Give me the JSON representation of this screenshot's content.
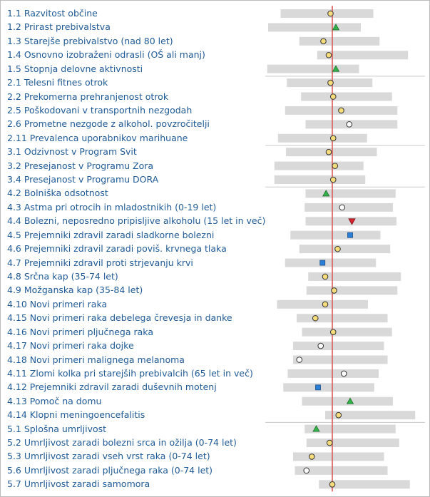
{
  "chart_data": {
    "type": "range-dot",
    "colors": {
      "label": "#1f5a96",
      "bar": "#d9d9d9",
      "reference_line": "#d9534f",
      "separator": "#c8c8c8",
      "marker_yellow": "#f7dc7b",
      "marker_white": "#ffffff",
      "marker_green": "#33b44a",
      "marker_red": "#d9232e",
      "marker_blue": "#2b7fd6"
    },
    "reference": 0,
    "groups": [
      {
        "rows": [
          {
            "label": "1.1 Razvitost občine",
            "range": [
              -0.58,
              0.46
            ],
            "value": -0.02,
            "marker": "circle",
            "color": "yellow"
          },
          {
            "label": "1.2 Prirast prebivalstva",
            "range": [
              -0.72,
              0.32
            ],
            "value": 0.04,
            "marker": "triangle-up",
            "color": "green"
          },
          {
            "label": "1.3 Starejše prebivalstvo (nad 80 let)",
            "range": [
              -0.37,
              0.53
            ],
            "value": -0.1,
            "marker": "circle",
            "color": "yellow"
          },
          {
            "label": "1.4 Osnovno izobraženi odrasli (OŠ ali manj)",
            "range": [
              -0.17,
              0.85
            ],
            "value": -0.04,
            "marker": "circle",
            "color": "yellow"
          },
          {
            "label": "1.5 Stopnja delovne aktivnosti",
            "range": [
              -0.73,
              0.3
            ],
            "value": 0.04,
            "marker": "triangle-up",
            "color": "green"
          }
        ]
      },
      {
        "rows": [
          {
            "label": "2.1 Telesni fitnes otrok",
            "range": [
              -0.51,
              0.45
            ],
            "value": -0.02,
            "marker": "circle",
            "color": "yellow"
          },
          {
            "label": "2.2 Prekomerna prehranjenost otrok",
            "range": [
              -0.35,
              0.67
            ],
            "value": 0.01,
            "marker": "circle",
            "color": "yellow"
          },
          {
            "label": "2.5 Poškodovani v transportnih nezgodah",
            "range": [
              -0.53,
              0.73
            ],
            "value": 0.1,
            "marker": "circle",
            "color": "yellow"
          },
          {
            "label": "2.6 Prometne nezgode z alkohol. povzročitelji",
            "range": [
              -0.3,
              0.73
            ],
            "value": 0.19,
            "marker": "circle",
            "color": "white"
          },
          {
            "label": "2.11 Prevalenca uporabnikov marihuane",
            "range": [
              -0.61,
              0.39
            ],
            "value": 0.01,
            "marker": "circle",
            "color": "yellow"
          }
        ]
      },
      {
        "rows": [
          {
            "label": "3.1 Odzivnost v Program Svit",
            "range": [
              -0.52,
              0.5
            ],
            "value": -0.04,
            "marker": "circle",
            "color": "yellow"
          },
          {
            "label": "3.2 Presejanost v Programu Zora",
            "range": [
              -0.65,
              0.35
            ],
            "value": 0.03,
            "marker": "circle",
            "color": "yellow"
          },
          {
            "label": "3.4 Presejanost v Programu DORA",
            "range": [
              -0.65,
              0.37
            ],
            "value": 0.01,
            "marker": "circle",
            "color": "yellow"
          }
        ]
      },
      {
        "rows": [
          {
            "label": "4.2 Bolniška odsotnost",
            "range": [
              -0.3,
              0.71
            ],
            "value": -0.07,
            "marker": "triangle-up",
            "color": "green"
          },
          {
            "label": "4.3 Astma pri otrocih in mladostnikih (0-19 let)",
            "range": [
              -0.31,
              0.68
            ],
            "value": 0.11,
            "marker": "circle",
            "color": "white"
          },
          {
            "label": "4.4 Bolezni, neposredno pripisljive alkoholu (15 let in več)",
            "range": [
              -0.3,
              0.72
            ],
            "value": 0.22,
            "marker": "triangle-down",
            "color": "red"
          },
          {
            "label": "4.5 Prejemniki zdravil zaradi sladkorne bolezni",
            "range": [
              -0.47,
              0.54
            ],
            "value": 0.2,
            "marker": "square",
            "color": "blue"
          },
          {
            "label": "4.6 Prejemniki zdravil zaradi poviš. krvnega tlaka",
            "range": [
              -0.37,
              0.65
            ],
            "value": 0.06,
            "marker": "circle",
            "color": "yellow"
          },
          {
            "label": "4.7 Prejemniki zdravil proti strjevanju krvi",
            "range": [
              -0.53,
              0.49
            ],
            "value": -0.11,
            "marker": "square",
            "color": "blue"
          },
          {
            "label": "4.8 Srčna kap (35-74 let)",
            "range": [
              -0.27,
              0.77
            ],
            "value": -0.08,
            "marker": "circle",
            "color": "yellow"
          },
          {
            "label": "4.9 Možganska kap (35-84 let)",
            "range": [
              -0.29,
              0.73
            ],
            "value": 0.02,
            "marker": "circle",
            "color": "yellow"
          },
          {
            "label": "4.10 Novi primeri raka",
            "range": [
              -0.62,
              0.4
            ],
            "value": -0.08,
            "marker": "circle",
            "color": "yellow"
          },
          {
            "label": "4.15 Novi primeri raka debelega črevesja in danke",
            "range": [
              -0.4,
              0.62
            ],
            "value": -0.19,
            "marker": "circle",
            "color": "yellow"
          },
          {
            "label": "4.16 Novi primeri pljučnega raka",
            "range": [
              -0.34,
              0.67
            ],
            "value": 0.01,
            "marker": "circle",
            "color": "yellow"
          },
          {
            "label": "4.17 Novi primeri raka dojke",
            "range": [
              -0.44,
              0.58
            ],
            "value": -0.13,
            "marker": "circle",
            "color": "white"
          },
          {
            "label": "4.18 Novi primeri malignega melanoma",
            "range": [
              -0.44,
              0.62
            ],
            "value": -0.37,
            "marker": "circle",
            "color": "white"
          },
          {
            "label": "4.11 Zlomi kolka pri starejših prebivalcih (65 let in več)",
            "range": [
              -0.5,
              0.52
            ],
            "value": 0.13,
            "marker": "circle",
            "color": "white"
          },
          {
            "label": "4.12 Prejemniki zdravil zaradi duševnih motenj",
            "range": [
              -0.55,
              0.47
            ],
            "value": -0.16,
            "marker": "square",
            "color": "blue"
          },
          {
            "label": "4.13 Pomoč na domu",
            "range": [
              -0.34,
              0.68
            ],
            "value": 0.2,
            "marker": "triangle-up",
            "color": "green"
          },
          {
            "label": "4.14 Klopni meningoencefalitis",
            "range": [
              -0.08,
              0.93
            ],
            "value": 0.07,
            "marker": "circle",
            "color": "yellow"
          }
        ]
      },
      {
        "rows": [
          {
            "label": "5.1 Splošna umrljivost",
            "range": [
              -0.31,
              0.71
            ],
            "value": -0.18,
            "marker": "triangle-up",
            "color": "green"
          },
          {
            "label": "5.2 Umrljivost zaradi bolezni srca in ožilja (0-74 let)",
            "range": [
              -0.29,
              0.75
            ],
            "value": -0.03,
            "marker": "circle",
            "color": "yellow"
          },
          {
            "label": "5.3 Umrljivost zaradi vseh vrst raka (0-74 let)",
            "range": [
              -0.44,
              0.58
            ],
            "value": -0.23,
            "marker": "circle",
            "color": "yellow"
          },
          {
            "label": "5.6 Umrljivost zaradi pljučnega raka (0-74 let)",
            "range": [
              -0.42,
              0.62
            ],
            "value": -0.29,
            "marker": "circle",
            "color": "white"
          },
          {
            "label": "5.7 Umrljivost zaradi samomora",
            "range": [
              -0.15,
              0.87
            ],
            "value": 0.0,
            "marker": "circle",
            "color": "yellow"
          }
        ]
      }
    ]
  }
}
